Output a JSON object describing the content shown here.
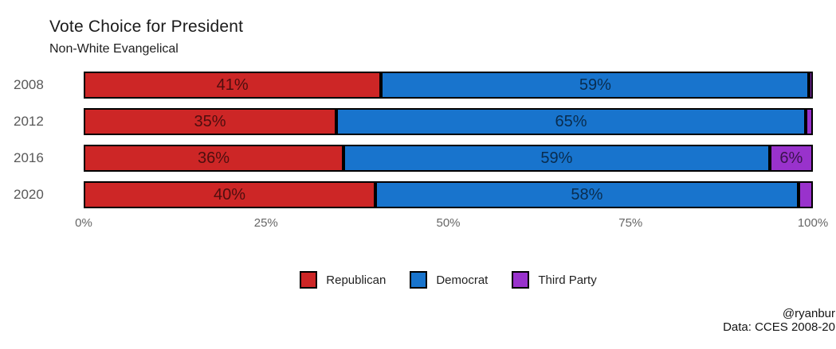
{
  "header": {
    "title": "Vote Choice for President",
    "subtitle": "Non-White Evangelical"
  },
  "chart_data": {
    "type": "bar",
    "orientation": "horizontal-stacked",
    "title": "Vote Choice for President",
    "subtitle": "Non-White Evangelical",
    "categories": [
      "2008",
      "2012",
      "2016",
      "2020"
    ],
    "series": [
      {
        "name": "Republican",
        "color": "#CD2626",
        "values": [
          41,
          35,
          36,
          40
        ],
        "labels": [
          "41%",
          "35%",
          "36%",
          "40%"
        ]
      },
      {
        "name": "Democrat",
        "color": "#1874CD",
        "values": [
          59,
          65,
          59,
          58
        ],
        "labels": [
          "59%",
          "65%",
          "59%",
          "58%"
        ]
      },
      {
        "name": "Third Party",
        "color": "#9932CC",
        "values": [
          0.5,
          1,
          6,
          2
        ],
        "labels": [
          "",
          "",
          "6%",
          ""
        ]
      }
    ],
    "x_ticks": [
      "0%",
      "25%",
      "50%",
      "75%",
      "100%"
    ],
    "x_tick_values": [
      0,
      25,
      50,
      75,
      100
    ],
    "xlim": [
      0,
      100
    ],
    "grid": false,
    "legend_position": "bottom",
    "bar_border_color": "#000000",
    "label_color": "rgba(0,0,0,0.62)"
  },
  "footer": {
    "credit": "@ryanbur",
    "source": "Data: CCES 2008-20"
  }
}
